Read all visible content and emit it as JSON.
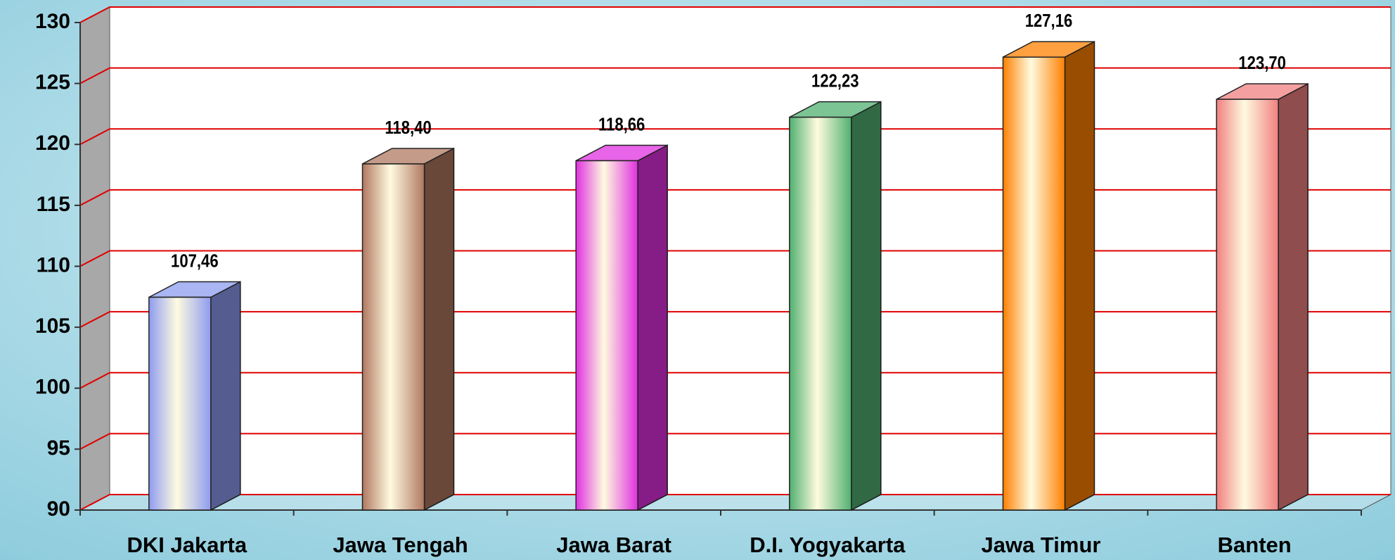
{
  "chart_data": {
    "type": "bar3d",
    "categories": [
      "DKI Jakarta",
      "Jawa Tengah",
      "Jawa Barat",
      "D.I. Yogyakarta",
      "Jawa Timur",
      "Banten"
    ],
    "values": [
      107.46,
      118.4,
      118.66,
      122.23,
      127.16,
      123.7
    ],
    "value_labels": [
      "107,46",
      "118,40",
      "118,66",
      "122,23",
      "127,16",
      "123,70"
    ],
    "colors": [
      "#8e9cf0",
      "#b07860",
      "#e030e0",
      "#50b070",
      "#ff8000",
      "#f08080"
    ],
    "ylim": [
      90,
      130
    ],
    "yticks": [
      90,
      95,
      100,
      105,
      110,
      115,
      120,
      125,
      130
    ],
    "grid": true
  }
}
